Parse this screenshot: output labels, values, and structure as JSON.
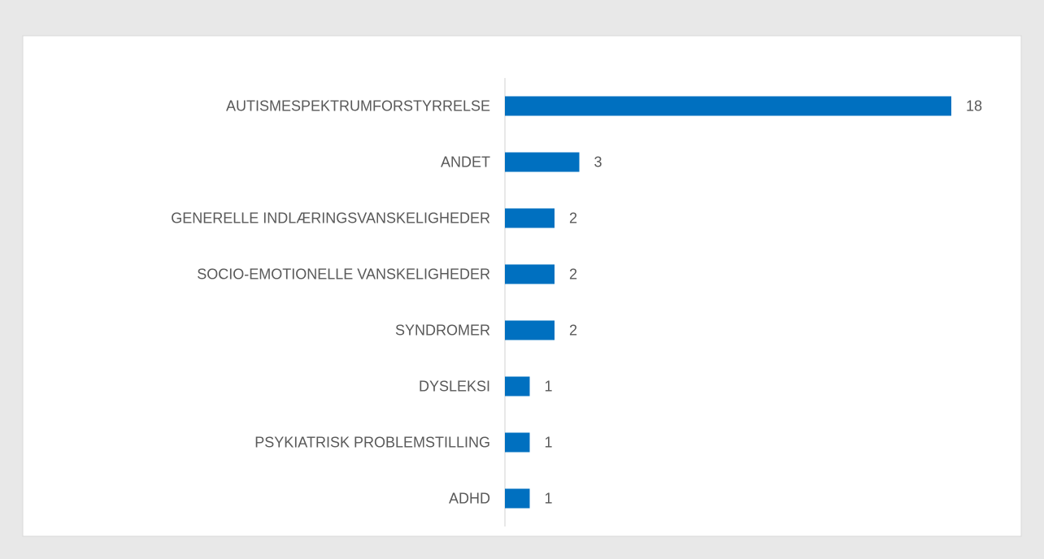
{
  "chart_data": {
    "type": "bar",
    "orientation": "horizontal",
    "categories": [
      "AUTISMESPEKTRUMFORSTYRRELSE",
      "ANDET",
      "GENERELLE INDLÆRINGSVANSKELIGHEDER",
      "SOCIO-EMOTIONELLE VANSKELIGHEDER",
      "SYNDROMER",
      "DYSLEKSI",
      "PSYKIATRISK PROBLEMSTILLING",
      "ADHD"
    ],
    "values": [
      18,
      3,
      2,
      2,
      2,
      1,
      1,
      1
    ],
    "color": "#0070c0"
  }
}
